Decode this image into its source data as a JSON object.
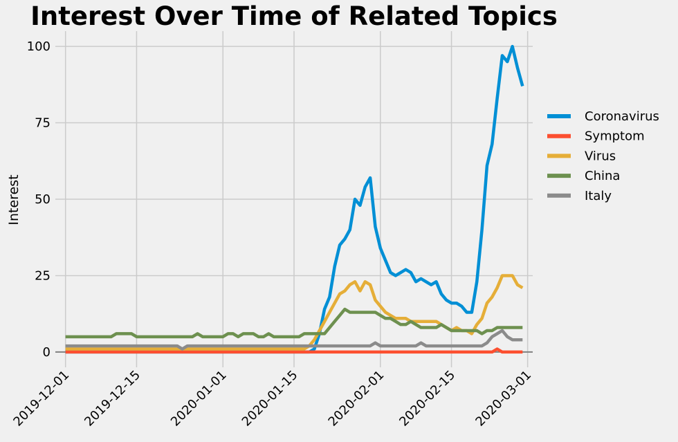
{
  "chart_data": {
    "type": "line",
    "title": "Interest Over Time of Related Topics",
    "xlabel": "",
    "ylabel": "Interest",
    "ylim": [
      -5,
      105
    ],
    "xlim": [
      "2019-11-29",
      "2020-03-02"
    ],
    "yticks": [
      0,
      25,
      50,
      75,
      100
    ],
    "x_start": "2019-12-01",
    "xticks": [
      "2019-12-01",
      "2019-12-15",
      "2020-01-01",
      "2020-01-15",
      "2020-02-01",
      "2020-02-15",
      "2020-03-01"
    ],
    "grid": true,
    "legend_position": "right",
    "baseline": 0,
    "series": [
      {
        "name": "Coronavirus",
        "color": "#008fd5",
        "values": [
          0,
          0,
          0,
          0,
          0,
          0,
          0,
          0,
          0,
          0,
          0,
          0,
          0,
          0,
          0,
          0,
          0,
          0,
          0,
          0,
          0,
          0,
          0,
          0,
          0,
          0,
          0,
          0,
          0,
          0,
          0,
          0,
          0,
          0,
          0,
          0,
          0,
          0,
          0,
          0,
          0,
          0,
          0,
          0,
          0,
          0,
          0,
          0,
          0,
          1,
          6,
          14,
          18,
          28,
          35,
          37,
          40,
          50,
          48,
          54,
          57,
          41,
          34,
          30,
          26,
          25,
          26,
          27,
          26,
          23,
          24,
          23,
          22,
          23,
          19,
          17,
          16,
          16,
          15,
          13,
          13,
          23,
          40,
          61,
          68,
          83,
          97,
          95,
          100,
          93,
          87
        ]
      },
      {
        "name": "Symptom",
        "color": "#fc4f30",
        "values": [
          0,
          0,
          0,
          0,
          0,
          0,
          0,
          0,
          0,
          0,
          0,
          0,
          0,
          0,
          0,
          0,
          0,
          0,
          0,
          0,
          0,
          0,
          0,
          0,
          0,
          0,
          0,
          0,
          0,
          0,
          0,
          0,
          0,
          0,
          0,
          0,
          0,
          0,
          0,
          0,
          0,
          0,
          0,
          0,
          0,
          0,
          0,
          0,
          0,
          0,
          0,
          0,
          0,
          0,
          0,
          0,
          0,
          0,
          0,
          0,
          0,
          0,
          0,
          0,
          0,
          0,
          0,
          0,
          0,
          0,
          0,
          0,
          0,
          0,
          0,
          0,
          0,
          0,
          0,
          0,
          0,
          0,
          0,
          0,
          0,
          1,
          0,
          0,
          0,
          0,
          0
        ]
      },
      {
        "name": "Virus",
        "color": "#e5ae38",
        "values": [
          1,
          1,
          1,
          1,
          1,
          1,
          1,
          1,
          1,
          1,
          1,
          1,
          1,
          1,
          1,
          1,
          1,
          1,
          1,
          1,
          1,
          1,
          1,
          1,
          1,
          1,
          1,
          1,
          1,
          1,
          1,
          1,
          1,
          1,
          1,
          1,
          1,
          1,
          1,
          1,
          1,
          1,
          1,
          1,
          1,
          1,
          1,
          1,
          2,
          4,
          7,
          10,
          13,
          16,
          19,
          20,
          22,
          23,
          20,
          23,
          22,
          17,
          15,
          13,
          12,
          11,
          11,
          11,
          10,
          10,
          10,
          10,
          10,
          10,
          9,
          8,
          7,
          8,
          7,
          7,
          6,
          9,
          11,
          16,
          18,
          21,
          25,
          25,
          25,
          22,
          21
        ]
      },
      {
        "name": "China",
        "color": "#6d904f",
        "values": [
          5,
          5,
          5,
          5,
          5,
          5,
          5,
          5,
          5,
          5,
          6,
          6,
          6,
          6,
          5,
          5,
          5,
          5,
          5,
          5,
          5,
          5,
          5,
          5,
          5,
          5,
          6,
          5,
          5,
          5,
          5,
          5,
          6,
          6,
          5,
          6,
          6,
          6,
          5,
          5,
          6,
          5,
          5,
          5,
          5,
          5,
          5,
          6,
          6,
          6,
          6,
          6,
          8,
          10,
          12,
          14,
          13,
          13,
          13,
          13,
          13,
          13,
          12,
          11,
          11,
          10,
          9,
          9,
          10,
          9,
          8,
          8,
          8,
          8,
          9,
          8,
          7,
          7,
          7,
          7,
          7,
          7,
          6,
          7,
          7,
          8,
          8,
          8,
          8,
          8,
          8
        ]
      },
      {
        "name": "Italy",
        "color": "#8b8b8b",
        "values": [
          2,
          2,
          2,
          2,
          2,
          2,
          2,
          2,
          2,
          2,
          2,
          2,
          2,
          2,
          2,
          2,
          2,
          2,
          2,
          2,
          2,
          2,
          2,
          1,
          2,
          2,
          2,
          2,
          2,
          2,
          2,
          2,
          2,
          2,
          2,
          2,
          2,
          2,
          2,
          2,
          2,
          2,
          2,
          2,
          2,
          2,
          2,
          2,
          2,
          2,
          2,
          2,
          2,
          2,
          2,
          2,
          2,
          2,
          2,
          2,
          2,
          3,
          2,
          2,
          2,
          2,
          2,
          2,
          2,
          2,
          3,
          2,
          2,
          2,
          2,
          2,
          2,
          2,
          2,
          2,
          2,
          2,
          2,
          3,
          5,
          6,
          7,
          5,
          4,
          4,
          4
        ]
      }
    ]
  }
}
